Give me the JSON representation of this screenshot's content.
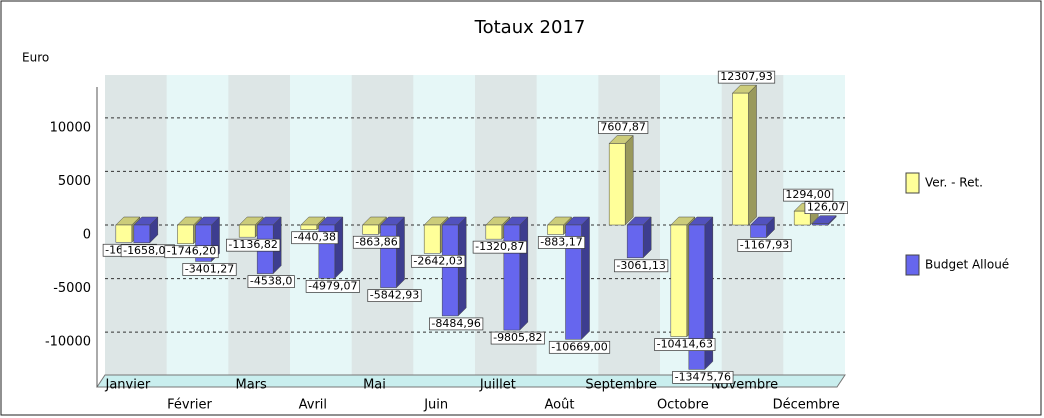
{
  "chart_data": {
    "type": "bar",
    "title": "Totaux 2017",
    "y_label": "Euro",
    "categories": [
      "Janvier",
      "Février",
      "Mars",
      "Avril",
      "Mai",
      "Juin",
      "Juillet",
      "Août",
      "Septembre",
      "Octobre",
      "Novembre",
      "Décembre"
    ],
    "series": [
      {
        "name": "Ver. - Ret.",
        "color": "#ffff99",
        "values": [
          -1610,
          -1746.2,
          -1136.82,
          -440.38,
          -863.86,
          -2642.03,
          -1320.87,
          -883.17,
          7607.87,
          -10414.63,
          12307.93,
          1294.0
        ],
        "value_labels": [
          "-1610,00",
          "-1746,20",
          "-1136,82",
          "-440,38",
          "-863,86",
          "-2642,03",
          "-1320,87",
          "-883,17",
          "7607,87",
          "-10414,63",
          "12307,93",
          "1294,00"
        ]
      },
      {
        "name": "Budget Alloué",
        "color": "#6666ee",
        "values": [
          -1658,
          -3401.27,
          -4538.0,
          -4979.07,
          -5842.93,
          -8484.96,
          -9805.82,
          -10669.0,
          -3061.13,
          -13475.76,
          -1167.93,
          126.07
        ],
        "value_labels": [
          "-1658,00",
          "-3401,27",
          "-4538,0",
          "-4979,07",
          "-5842,93",
          "-8484,96",
          "-9805,82",
          "-10669,00",
          "-3061,13",
          "-13475,76",
          "-1167,93",
          "126,07"
        ]
      }
    ],
    "ylim": [
      -14000,
      14000
    ],
    "yticks": [
      -10000,
      -5000,
      0,
      5000,
      10000
    ],
    "grid": true
  }
}
